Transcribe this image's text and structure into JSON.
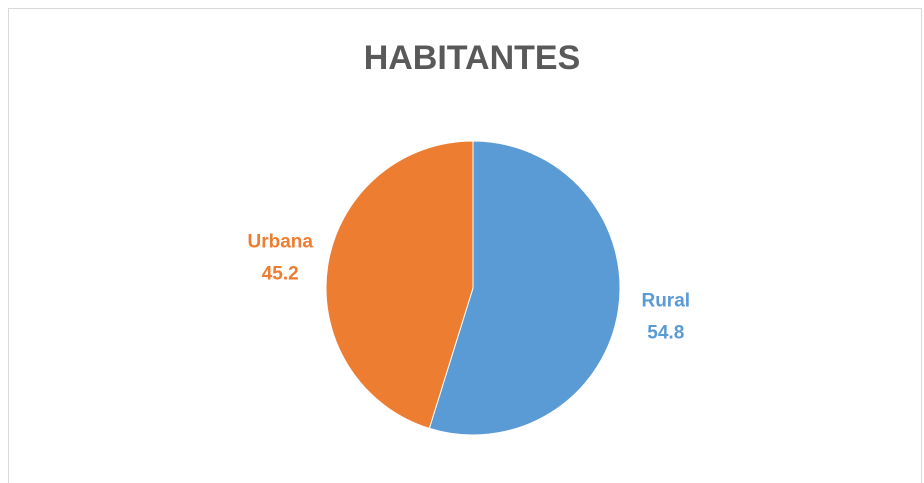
{
  "chart_data": {
    "type": "pie",
    "title": "HABITANTES",
    "categories": [
      "Rural",
      "Urbana"
    ],
    "values": [
      54.8,
      45.2
    ],
    "colors": [
      "#5b9bd5",
      "#ed7d31"
    ]
  }
}
